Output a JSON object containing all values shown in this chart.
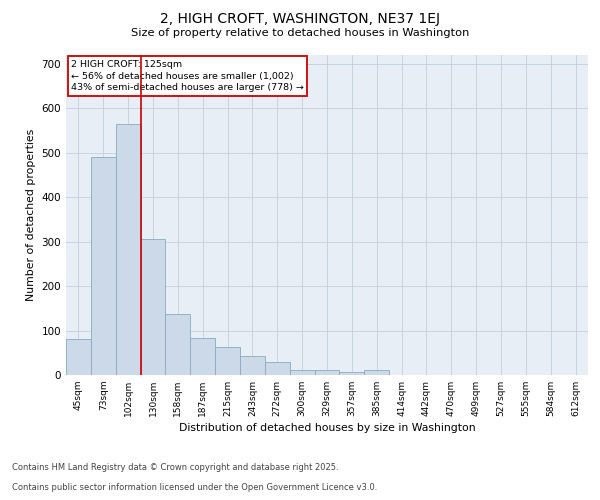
{
  "title": "2, HIGH CROFT, WASHINGTON, NE37 1EJ",
  "subtitle": "Size of property relative to detached houses in Washington",
  "xlabel": "Distribution of detached houses by size in Washington",
  "ylabel": "Number of detached properties",
  "categories": [
    "45sqm",
    "73sqm",
    "102sqm",
    "130sqm",
    "158sqm",
    "187sqm",
    "215sqm",
    "243sqm",
    "272sqm",
    "300sqm",
    "329sqm",
    "357sqm",
    "385sqm",
    "414sqm",
    "442sqm",
    "470sqm",
    "499sqm",
    "527sqm",
    "555sqm",
    "584sqm",
    "612sqm"
  ],
  "values": [
    80,
    490,
    565,
    307,
    137,
    83,
    62,
    42,
    30,
    12,
    11,
    6,
    11,
    0,
    0,
    0,
    0,
    0,
    0,
    0,
    0
  ],
  "bar_color": "#ccd9e8",
  "bar_edge_color": "#8aaabf",
  "grid_color": "#c8d4e0",
  "background_color": "#e8eef5",
  "vline_x": 2.5,
  "vline_color": "#cc0000",
  "annotation_title": "2 HIGH CROFT: 125sqm",
  "annotation_line1": "← 56% of detached houses are smaller (1,002)",
  "annotation_line2": "43% of semi-detached houses are larger (778) →",
  "annotation_box_color": "#ffffff",
  "annotation_box_edge": "#cc0000",
  "ylim": [
    0,
    720
  ],
  "yticks": [
    0,
    100,
    200,
    300,
    400,
    500,
    600,
    700
  ],
  "footer_line1": "Contains HM Land Registry data © Crown copyright and database right 2025.",
  "footer_line2": "Contains public sector information licensed under the Open Government Licence v3.0."
}
